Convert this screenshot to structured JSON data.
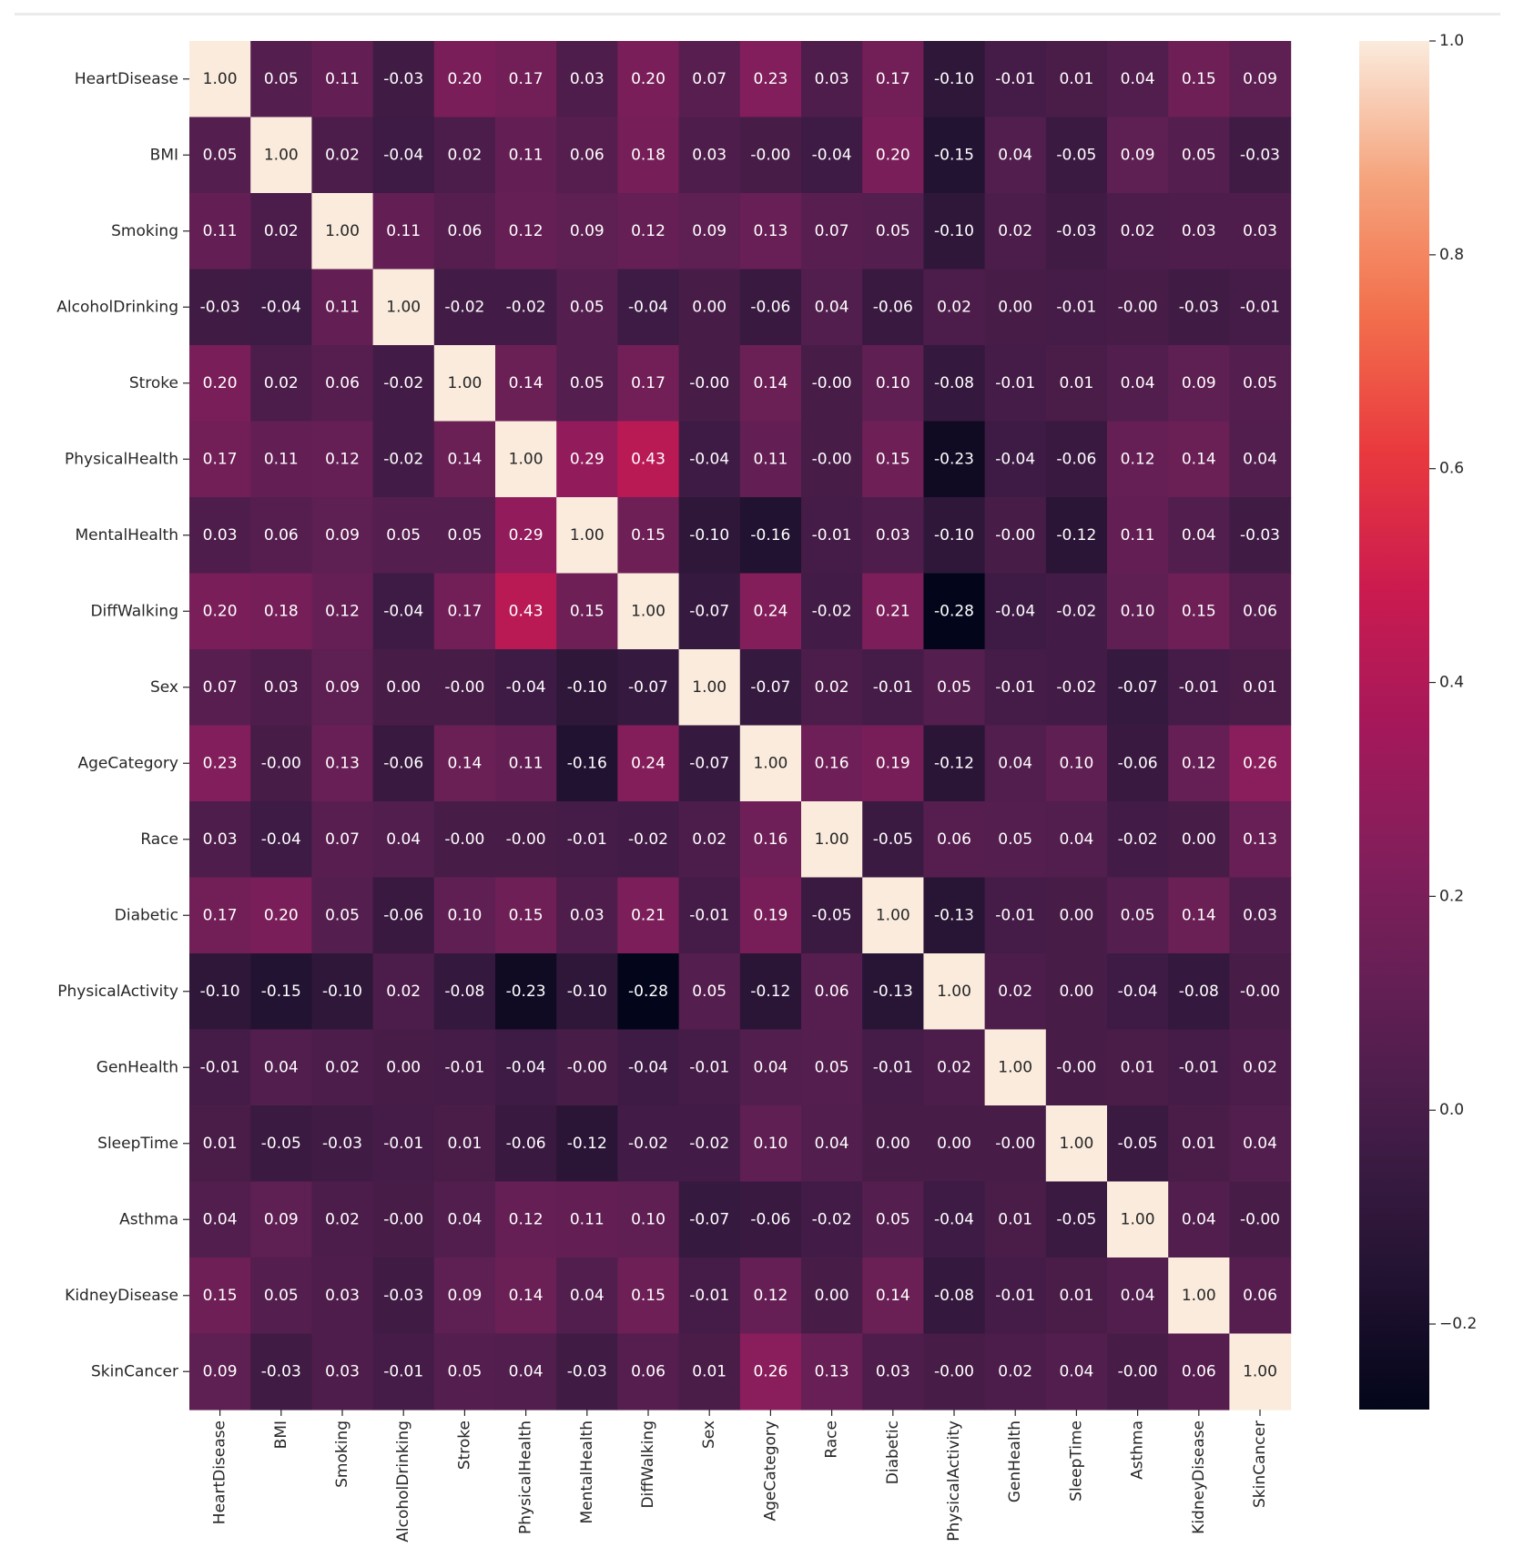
{
  "chart_data": {
    "type": "heatmap",
    "title": "",
    "xlabel": "",
    "ylabel": "",
    "labels": [
      "HeartDisease",
      "BMI",
      "Smoking",
      "AlcoholDrinking",
      "Stroke",
      "PhysicalHealth",
      "MentalHealth",
      "DiffWalking",
      "Sex",
      "AgeCategory",
      "Race",
      "Diabetic",
      "PhysicalActivity",
      "GenHealth",
      "SleepTime",
      "Asthma",
      "KidneyDisease",
      "SkinCancer"
    ],
    "matrix": [
      [
        1.0,
        0.05,
        0.11,
        -0.03,
        0.2,
        0.17,
        0.03,
        0.2,
        0.07,
        0.23,
        0.03,
        0.17,
        -0.1,
        -0.01,
        0.01,
        0.04,
        0.15,
        0.09
      ],
      [
        0.05,
        1.0,
        0.02,
        -0.04,
        0.02,
        0.11,
        0.06,
        0.18,
        0.03,
        -0.0,
        -0.04,
        0.2,
        -0.15,
        0.04,
        -0.05,
        0.09,
        0.05,
        -0.03
      ],
      [
        0.11,
        0.02,
        1.0,
        0.11,
        0.06,
        0.12,
        0.09,
        0.12,
        0.09,
        0.13,
        0.07,
        0.05,
        -0.1,
        0.02,
        -0.03,
        0.02,
        0.03,
        0.03
      ],
      [
        -0.03,
        -0.04,
        0.11,
        1.0,
        -0.02,
        -0.02,
        0.05,
        -0.04,
        0.0,
        -0.06,
        0.04,
        -0.06,
        0.02,
        0.0,
        -0.01,
        -0.0,
        -0.03,
        -0.01
      ],
      [
        0.2,
        0.02,
        0.06,
        -0.02,
        1.0,
        0.14,
        0.05,
        0.17,
        -0.0,
        0.14,
        -0.0,
        0.1,
        -0.08,
        -0.01,
        0.01,
        0.04,
        0.09,
        0.05
      ],
      [
        0.17,
        0.11,
        0.12,
        -0.02,
        0.14,
        1.0,
        0.29,
        0.43,
        -0.04,
        0.11,
        -0.0,
        0.15,
        -0.23,
        -0.04,
        -0.06,
        0.12,
        0.14,
        0.04
      ],
      [
        0.03,
        0.06,
        0.09,
        0.05,
        0.05,
        0.29,
        1.0,
        0.15,
        -0.1,
        -0.16,
        -0.01,
        0.03,
        -0.1,
        -0.0,
        -0.12,
        0.11,
        0.04,
        -0.03
      ],
      [
        0.2,
        0.18,
        0.12,
        -0.04,
        0.17,
        0.43,
        0.15,
        1.0,
        -0.07,
        0.24,
        -0.02,
        0.21,
        -0.28,
        -0.04,
        -0.02,
        0.1,
        0.15,
        0.06
      ],
      [
        0.07,
        0.03,
        0.09,
        0.0,
        -0.0,
        -0.04,
        -0.1,
        -0.07,
        1.0,
        -0.07,
        0.02,
        -0.01,
        0.05,
        -0.01,
        -0.02,
        -0.07,
        -0.01,
        0.01
      ],
      [
        0.23,
        -0.0,
        0.13,
        -0.06,
        0.14,
        0.11,
        -0.16,
        0.24,
        -0.07,
        1.0,
        0.16,
        0.19,
        -0.12,
        0.04,
        0.1,
        -0.06,
        0.12,
        0.26
      ],
      [
        0.03,
        -0.04,
        0.07,
        0.04,
        -0.0,
        -0.0,
        -0.01,
        -0.02,
        0.02,
        0.16,
        1.0,
        -0.05,
        0.06,
        0.05,
        0.04,
        -0.02,
        0.0,
        0.13
      ],
      [
        0.17,
        0.2,
        0.05,
        -0.06,
        0.1,
        0.15,
        0.03,
        0.21,
        -0.01,
        0.19,
        -0.05,
        1.0,
        -0.13,
        -0.01,
        0.0,
        0.05,
        0.14,
        0.03
      ],
      [
        -0.1,
        -0.15,
        -0.1,
        0.02,
        -0.08,
        -0.23,
        -0.1,
        -0.28,
        0.05,
        -0.12,
        0.06,
        -0.13,
        1.0,
        0.02,
        0.0,
        -0.04,
        -0.08,
        -0.0
      ],
      [
        -0.01,
        0.04,
        0.02,
        0.0,
        -0.01,
        -0.04,
        -0.0,
        -0.04,
        -0.01,
        0.04,
        0.05,
        -0.01,
        0.02,
        1.0,
        -0.0,
        0.01,
        -0.01,
        0.02
      ],
      [
        0.01,
        -0.05,
        -0.03,
        -0.01,
        0.01,
        -0.06,
        -0.12,
        -0.02,
        -0.02,
        0.1,
        0.04,
        0.0,
        0.0,
        -0.0,
        1.0,
        -0.05,
        0.01,
        0.04
      ],
      [
        0.04,
        0.09,
        0.02,
        -0.0,
        0.04,
        0.12,
        0.11,
        0.1,
        -0.07,
        -0.06,
        -0.02,
        0.05,
        -0.04,
        0.01,
        -0.05,
        1.0,
        0.04,
        -0.0
      ],
      [
        0.15,
        0.05,
        0.03,
        -0.03,
        0.09,
        0.14,
        0.04,
        0.15,
        -0.01,
        0.12,
        0.0,
        0.14,
        -0.08,
        -0.01,
        0.01,
        0.04,
        1.0,
        0.06
      ],
      [
        0.09,
        -0.03,
        0.03,
        -0.01,
        0.05,
        0.04,
        -0.03,
        0.06,
        0.01,
        0.26,
        0.13,
        0.03,
        -0.0,
        0.02,
        0.04,
        -0.0,
        0.06,
        1.0
      ]
    ],
    "value_format": "2 decimals",
    "colormap": "rocket",
    "vmin": -0.28,
    "vmax": 1.0,
    "colorbar_ticks": [
      1.0,
      0.8,
      0.6,
      0.4,
      0.2,
      0.0,
      -0.2
    ],
    "colorbar_tick_labels": [
      "1.0",
      "0.8",
      "0.6",
      "0.4",
      "0.2",
      "0.0",
      "−0.2"
    ],
    "legend_placement": "right (colorbar)"
  }
}
